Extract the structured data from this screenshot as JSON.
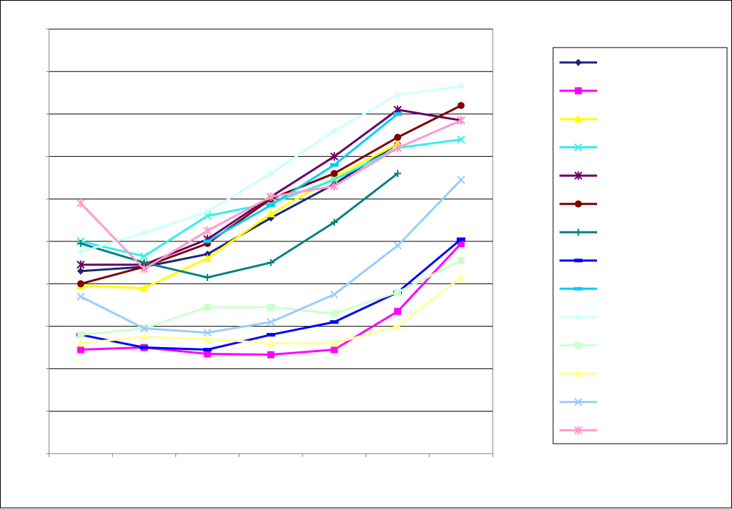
{
  "chart_data": {
    "type": "line",
    "title": "",
    "xlabel": "",
    "ylabel": "",
    "categories": [
      "",
      "",
      "",
      "",
      "",
      "",
      ""
    ],
    "ylim": [
      0,
      10
    ],
    "y_gridlines": [
      1,
      2,
      3,
      4,
      5,
      6,
      7,
      8,
      9,
      10
    ],
    "grid": true,
    "legend_placement": "right",
    "legend_labels_printed": false,
    "series": [
      {
        "color": "#1a237e",
        "marker": "diamond",
        "values": [
          4.3,
          4.4,
          4.7,
          5.55,
          6.35,
          7.3,
          null
        ]
      },
      {
        "color": "#ff00ff",
        "marker": "square",
        "values": [
          2.45,
          2.5,
          2.35,
          2.33,
          2.45,
          3.35,
          4.95
        ]
      },
      {
        "color": "#ffff00",
        "marker": "triangle",
        "values": [
          3.95,
          3.9,
          4.6,
          5.65,
          6.5,
          7.3,
          null
        ]
      },
      {
        "color": "#33eeee",
        "marker": "x",
        "values": [
          5.0,
          4.65,
          5.6,
          5.9,
          6.45,
          7.2,
          7.4
        ]
      },
      {
        "color": "#660066",
        "marker": "star",
        "values": [
          4.45,
          4.45,
          5.05,
          6.05,
          7.0,
          8.1,
          7.85
        ]
      },
      {
        "color": "#800000",
        "marker": "circle",
        "values": [
          4.0,
          4.4,
          4.95,
          6.0,
          6.6,
          7.45,
          8.2
        ]
      },
      {
        "color": "#008080",
        "marker": "plus",
        "values": [
          4.95,
          4.5,
          4.15,
          4.5,
          5.45,
          6.6,
          null
        ]
      },
      {
        "color": "#0000ff",
        "marker": "dash",
        "values": [
          2.8,
          2.5,
          2.45,
          2.8,
          3.1,
          3.8,
          5.05
        ]
      },
      {
        "color": "#00ccff",
        "marker": "dash",
        "values": [
          null,
          null,
          5.0,
          5.85,
          6.8,
          8.0,
          null
        ]
      },
      {
        "color": "#ccffff",
        "marker": "diamond",
        "values": [
          4.75,
          5.2,
          5.7,
          6.6,
          7.6,
          8.45,
          8.65
        ]
      },
      {
        "color": "#ccffcc",
        "marker": "square",
        "values": [
          2.8,
          2.95,
          3.45,
          3.45,
          3.3,
          3.8,
          4.55
        ]
      },
      {
        "color": "#ffff99",
        "marker": "triangle",
        "values": [
          2.6,
          2.75,
          2.7,
          2.6,
          2.6,
          3.0,
          4.15
        ]
      },
      {
        "color": "#99ccff",
        "marker": "x",
        "values": [
          3.7,
          2.95,
          2.85,
          3.1,
          3.75,
          4.9,
          6.45
        ]
      },
      {
        "color": "#ff99cc",
        "marker": "star",
        "values": [
          5.9,
          4.35,
          5.25,
          6.05,
          6.3,
          7.2,
          7.85
        ]
      }
    ]
  }
}
